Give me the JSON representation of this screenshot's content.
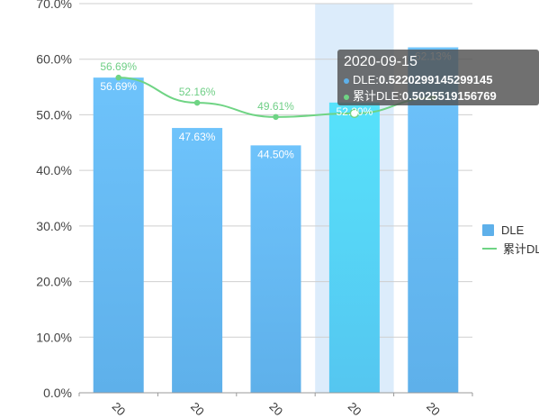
{
  "chart_data": {
    "type": "bar",
    "categories": [
      "20",
      "20",
      "20",
      "20",
      "20"
    ],
    "series": [
      {
        "name": "DLE",
        "type": "bar",
        "values": [
          0.5669,
          0.4763,
          0.445,
          0.522,
          0.6213
        ],
        "labels": [
          "56.69%",
          "47.63%",
          "44.50%",
          "52.20%",
          "62.13%"
        ]
      },
      {
        "name": "累计DLE",
        "type": "line",
        "values": [
          0.5669,
          0.5216,
          0.4961,
          0.5026,
          0.53
        ],
        "labels": [
          "56.69%",
          "52.16%",
          "49.61%",
          "",
          ""
        ]
      }
    ],
    "ylim": [
      0,
      0.7
    ],
    "yticks": [
      "0.0%",
      "10.0%",
      "20.0%",
      "30.0%",
      "40.0%",
      "50.0%",
      "60.0%",
      "70.0%"
    ],
    "grid": true,
    "legend_position": "right",
    "highlighted_index": 3,
    "colors": {
      "bar_top": "#6ec3fb",
      "bar_bottom": "#5eb0ea",
      "bar_highlight_top": "#56e2fb",
      "line": "#6fd484",
      "highlight_band": "#dcecfb",
      "legend_bar": "#5eb0ea"
    }
  },
  "tooltip": {
    "title": "2020-09-15",
    "rows": [
      {
        "label": "DLE:",
        "value": "0.5220299145299145",
        "color": "#5eb0ea"
      },
      {
        "label": "累计DLE:",
        "value": "0.5025519156769",
        "color": "#6fd484"
      }
    ]
  }
}
